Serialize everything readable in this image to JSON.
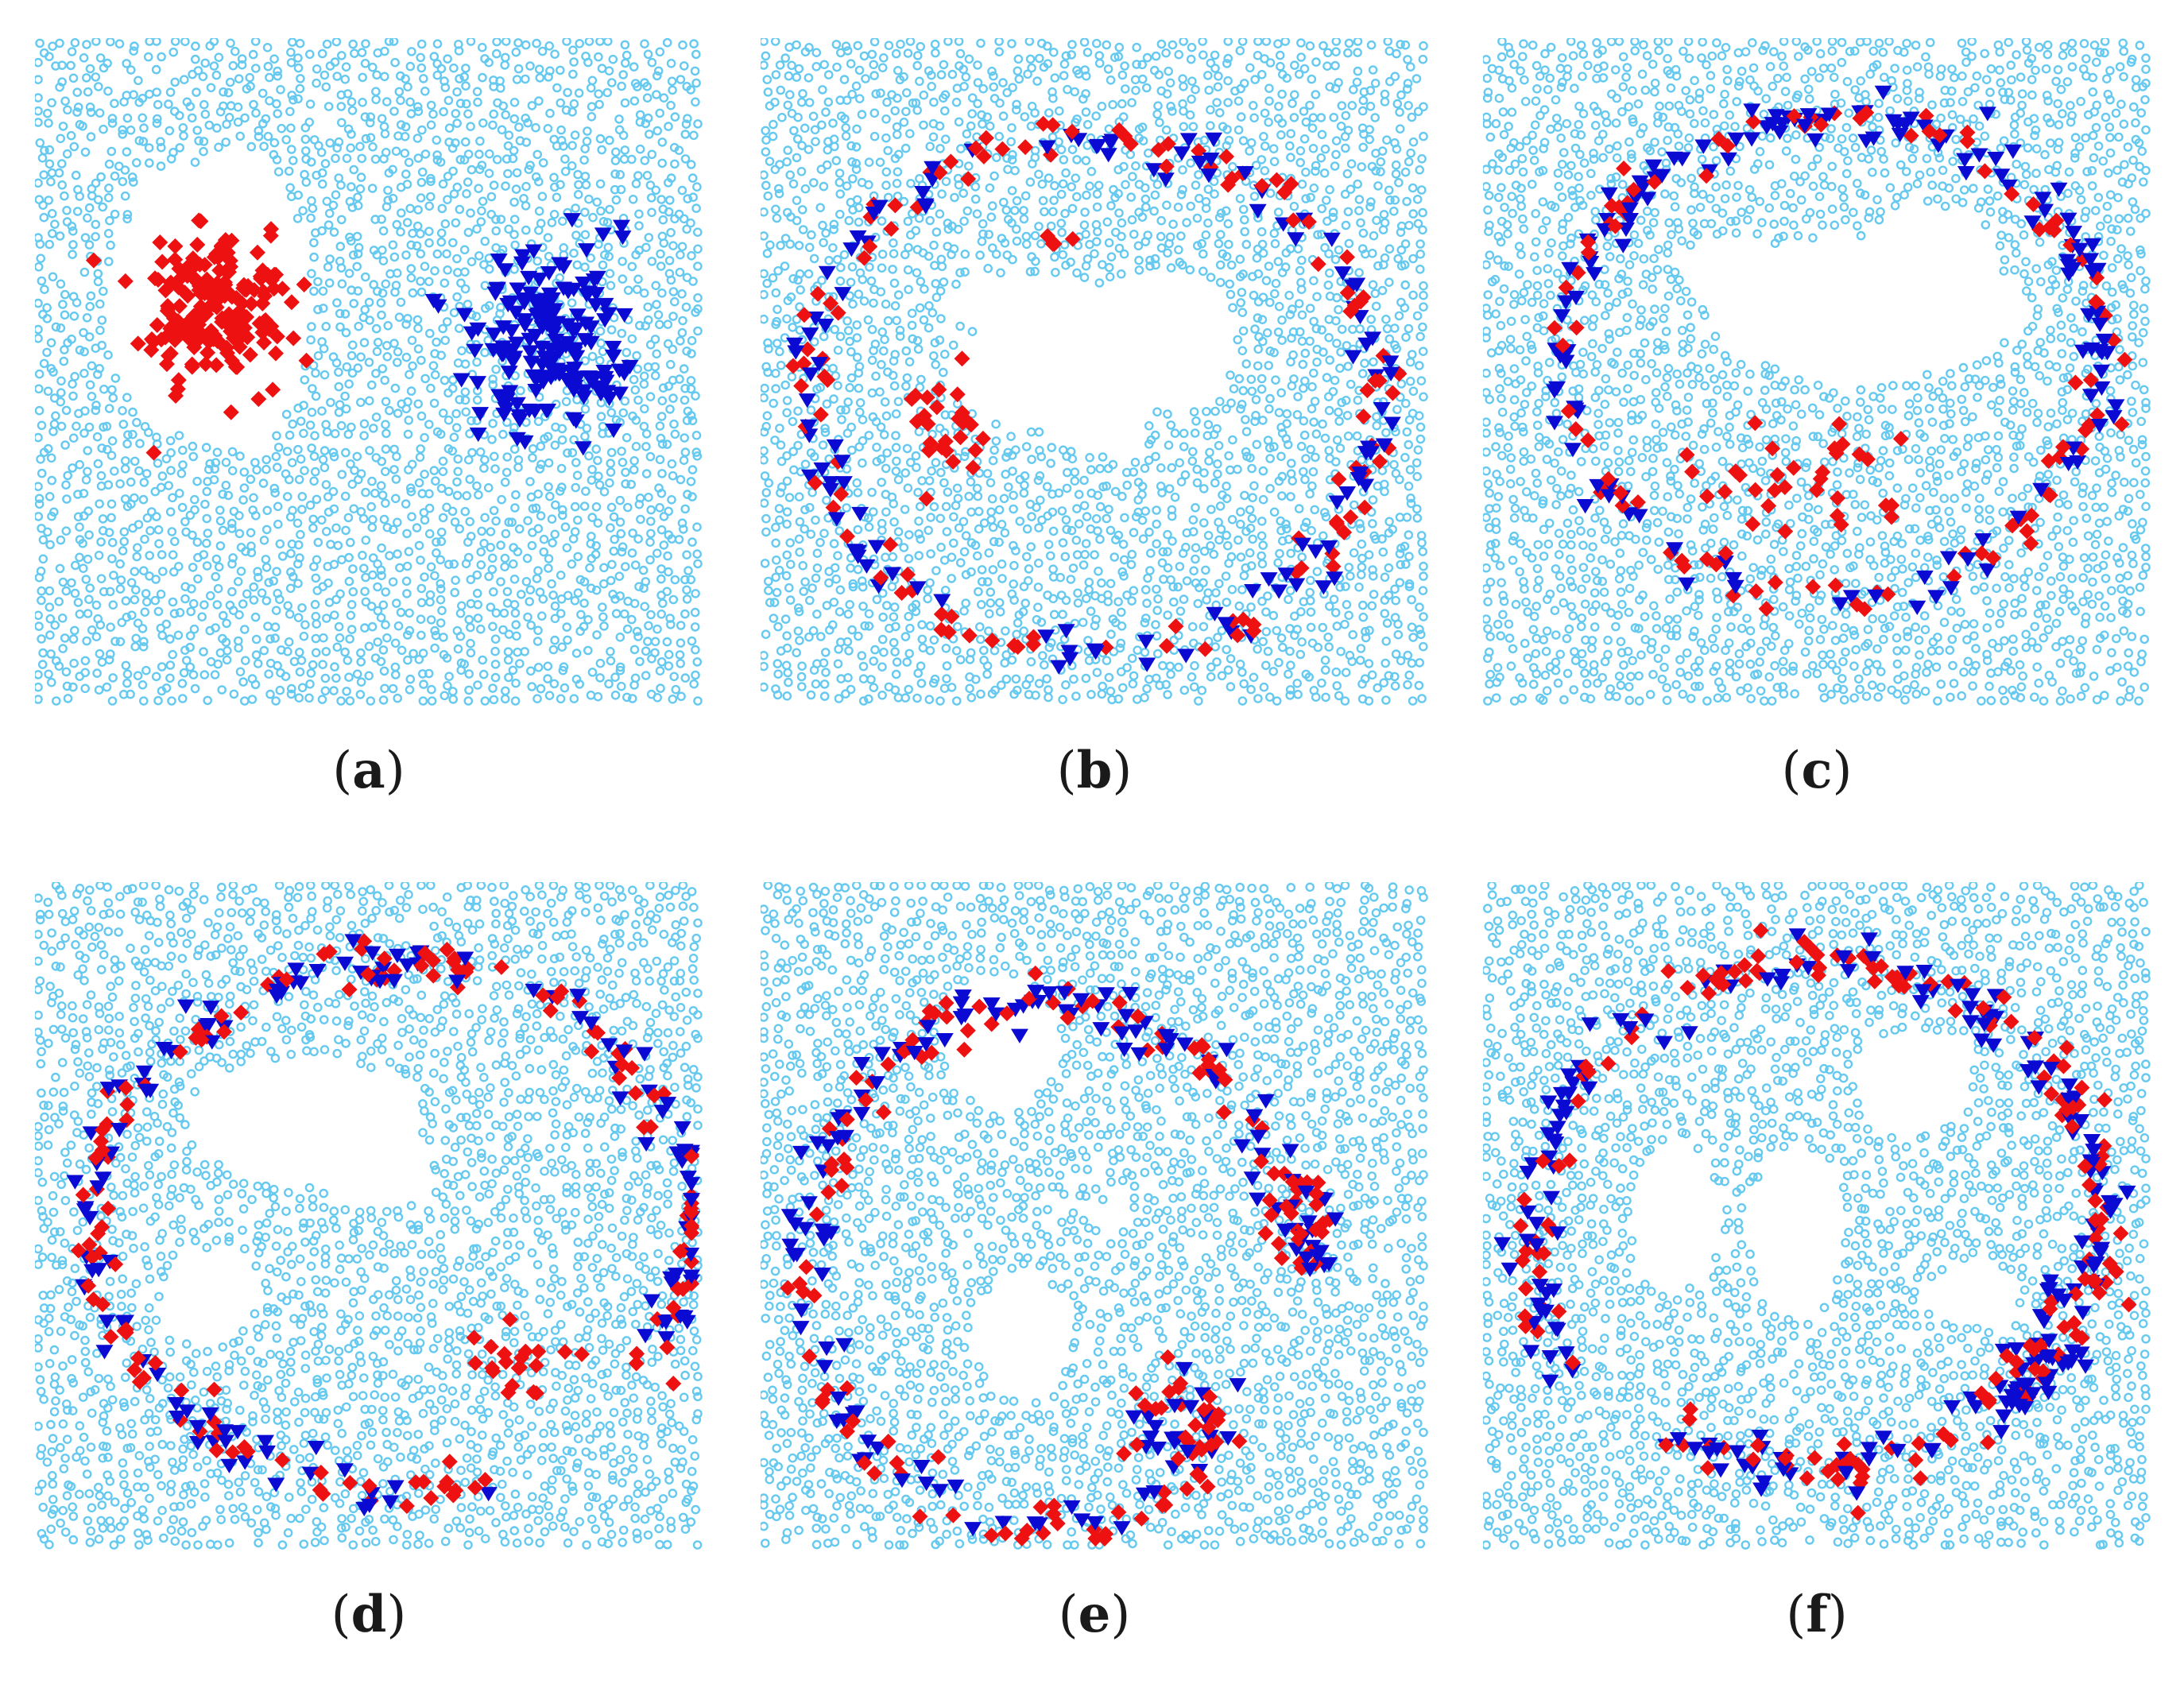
{
  "colors": {
    "background_particle": "#66c9ef",
    "red_particle": "#ee1111",
    "blue_particle": "#0a0ad2"
  },
  "panels": [
    {
      "label": "a",
      "config": "separated-clusters"
    },
    {
      "label": "b",
      "config": "ring"
    },
    {
      "label": "c",
      "config": "ring"
    },
    {
      "label": "d",
      "config": "ring"
    },
    {
      "label": "e",
      "config": "ring-with-cluster"
    },
    {
      "label": "f",
      "config": "broken-ring"
    }
  ]
}
